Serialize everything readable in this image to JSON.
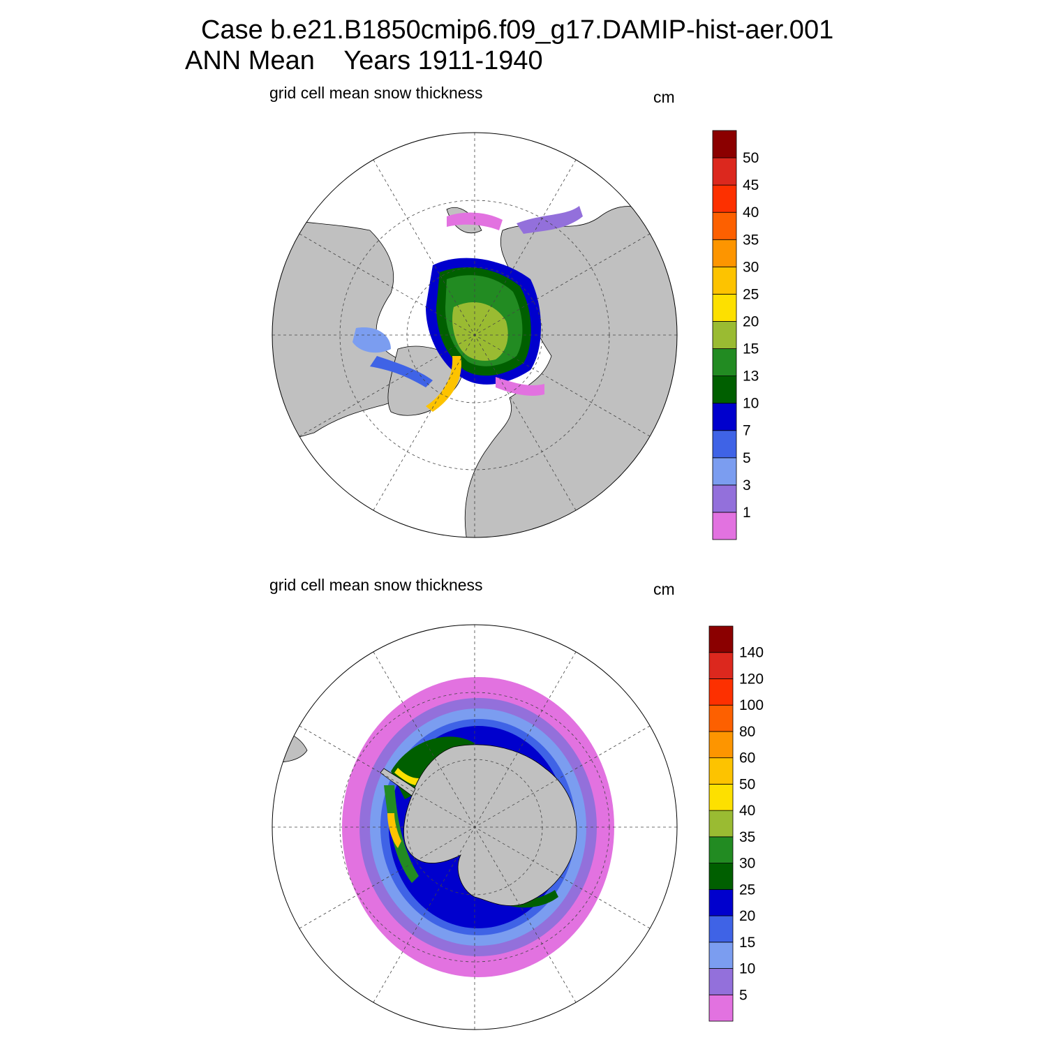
{
  "header": {
    "title_line1": "Case b.e21.B1850cmip6.f09_g17.DAMIP-hist-aer.001",
    "title_line2": "ANN Mean    Years 1911-1940"
  },
  "colors": {
    "land": "#c0c0c0",
    "ocean": "#ffffff",
    "palette": [
      "#e272e0",
      "#9370db",
      "#7b9df0",
      "#3f63e6",
      "#0000cd",
      "#005f00",
      "#228b22",
      "#9abb32",
      "#fde000",
      "#fdc300",
      "#fd9500",
      "#fd6000",
      "#fd3000",
      "#dc281e",
      "#8b0000"
    ]
  },
  "panels": [
    {
      "id": "north",
      "hemisphere": "Northern",
      "subtitle": "grid cell mean snow thickness",
      "units": "cm",
      "colorbar": {
        "levels": [
          "1",
          "3",
          "5",
          "7",
          "10",
          "13",
          "15",
          "20",
          "25",
          "30",
          "35",
          "40",
          "45",
          "50"
        ]
      }
    },
    {
      "id": "south",
      "hemisphere": "Southern",
      "subtitle": "grid cell mean snow thickness",
      "units": "cm",
      "colorbar": {
        "levels": [
          "5",
          "10",
          "15",
          "20",
          "25",
          "30",
          "35",
          "40",
          "50",
          "60",
          "80",
          "100",
          "120",
          "140"
        ]
      }
    }
  ]
}
